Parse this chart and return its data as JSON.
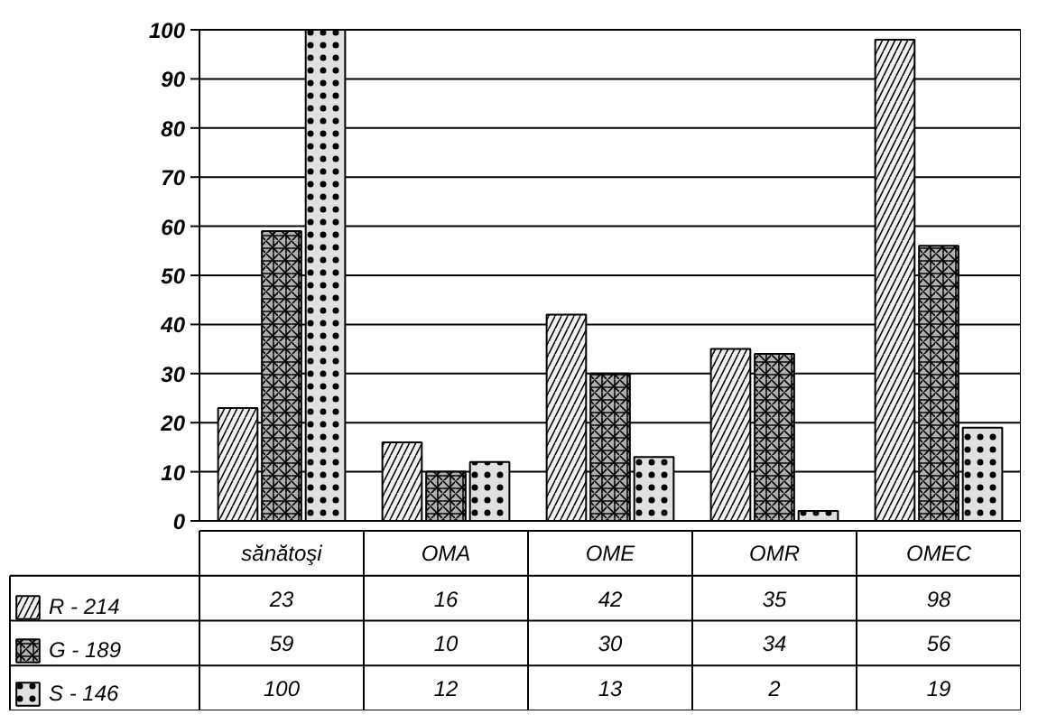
{
  "chart_data": {
    "type": "bar",
    "categories": [
      "sănătoşi",
      "OMA",
      "OME",
      "OMR",
      "OMEC"
    ],
    "series": [
      {
        "name": "R - 214",
        "color": "#f0f0f0",
        "values": [
          23,
          16,
          42,
          35,
          98
        ]
      },
      {
        "name": "G - 189",
        "color": "#b0b0b0",
        "values": [
          59,
          10,
          30,
          34,
          56
        ]
      },
      {
        "name": "S - 146",
        "color": "#e0e0e0",
        "values": [
          100,
          12,
          13,
          2,
          19
        ]
      }
    ],
    "ylim": [
      0,
      100
    ],
    "yticks": [
      0,
      10,
      20,
      30,
      40,
      50,
      60,
      70,
      80,
      90,
      100
    ],
    "grid": "y",
    "legend": "bottom left",
    "data_labels": true
  }
}
